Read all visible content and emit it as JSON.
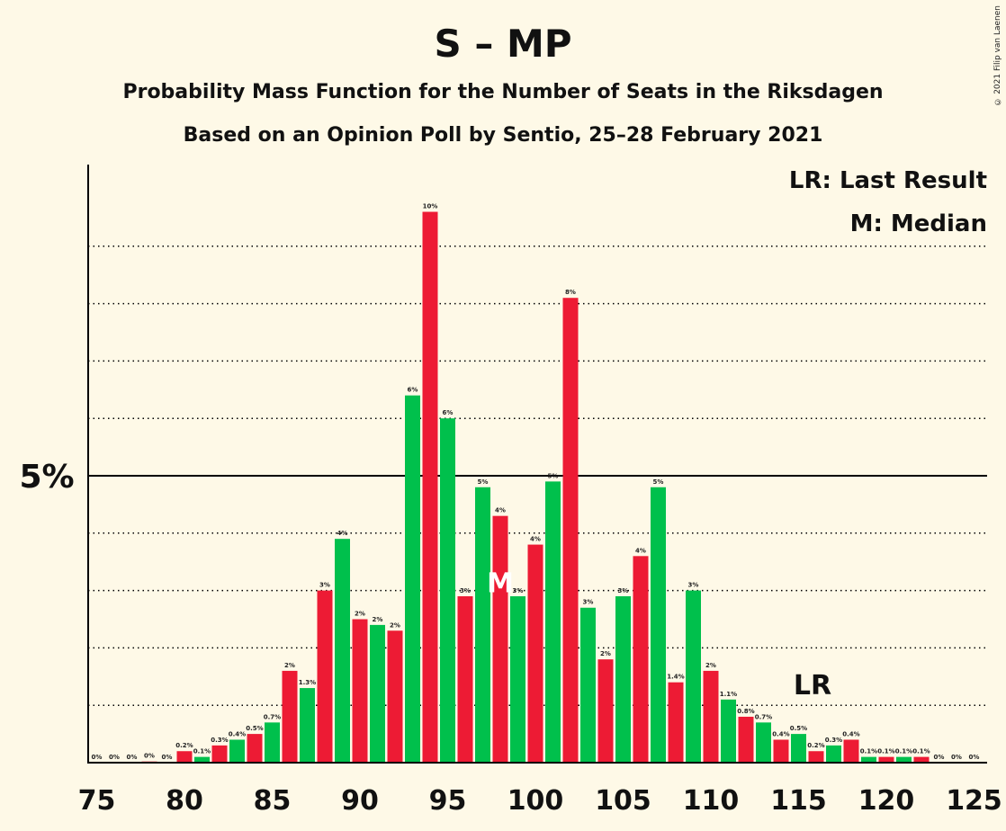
{
  "header": {
    "title": "S – MP",
    "subtitle": "Probability Mass Function for the Number of Seats in the Riksdagen",
    "subtitle2": "Based on an Opinion Poll by Sentio, 25–28 February 2021",
    "credit": "© 2021 Filip van Laenen"
  },
  "colors": {
    "red": "#ed1b34",
    "green": "#00c04c",
    "background": "#fef9e7"
  },
  "chart_data": {
    "type": "bar",
    "x": [
      75,
      76,
      77,
      78,
      79,
      80,
      81,
      82,
      83,
      84,
      85,
      86,
      87,
      88,
      89,
      90,
      91,
      92,
      93,
      94,
      95,
      96,
      97,
      98,
      99,
      100,
      101,
      102,
      103,
      104,
      105,
      106,
      107,
      108,
      109,
      110,
      111,
      112,
      113,
      114,
      115,
      116,
      117,
      118,
      119,
      120,
      121,
      122,
      123,
      124,
      125
    ],
    "values": [
      0,
      0,
      0,
      0.02,
      0,
      0.2,
      0.1,
      0.3,
      0.4,
      0.5,
      0.7,
      1.6,
      1.3,
      3.0,
      3.9,
      2.5,
      2.4,
      2.3,
      6.4,
      9.6,
      6.0,
      2.9,
      4.8,
      4.3,
      2.9,
      3.8,
      4.9,
      8.1,
      2.7,
      1.8,
      2.9,
      3.6,
      4.8,
      1.4,
      3.0,
      1.6,
      1.1,
      0.8,
      0.7,
      0.4,
      0.5,
      0.2,
      0.3,
      0.4,
      0.1,
      0.1,
      0.1,
      0.1,
      0,
      0,
      0
    ],
    "colors": [
      "green",
      "green",
      "green",
      "red",
      "green",
      "red",
      "green",
      "red",
      "green",
      "red",
      "green",
      "red",
      "green",
      "red",
      "green",
      "red",
      "green",
      "red",
      "green",
      "red",
      "green",
      "red",
      "green",
      "red",
      "green",
      "red",
      "green",
      "red",
      "green",
      "red",
      "green",
      "red",
      "green",
      "red",
      "green",
      "red",
      "green",
      "red",
      "green",
      "red",
      "green",
      "red",
      "green",
      "red",
      "green",
      "red",
      "green",
      "red",
      "green",
      "red",
      "green"
    ],
    "labels": [
      "0%",
      "0%",
      "0%",
      "0%",
      "0%",
      "0.2%",
      "0.1%",
      "0.3%",
      "0.4%",
      "0.5%",
      "0.7%",
      "2%",
      "1.3%",
      "3%",
      "4%",
      "2%",
      "2%",
      "2%",
      "6%",
      "10%",
      "6%",
      "3%",
      "5%",
      "4%",
      "3%",
      "4%",
      "5%",
      "8%",
      "3%",
      "2%",
      "3%",
      "4%",
      "5%",
      "1.4%",
      "3%",
      "2%",
      "1.1%",
      "0.8%",
      "0.7%",
      "0.4%",
      "0.5%",
      "0.2%",
      "0.3%",
      "0.4%",
      "0.1%",
      "0.1%",
      "0.1%",
      "0.1%",
      "0%",
      "0%",
      "0%"
    ],
    "xticks": [
      "75",
      "80",
      "85",
      "90",
      "95",
      "100",
      "105",
      "110",
      "115",
      "120",
      "125"
    ],
    "ytick_label": "5%",
    "ylim": [
      0,
      10.5
    ],
    "median_seat": 98,
    "median_marker": "M",
    "last_result_seat": 116,
    "last_result_marker": "LR",
    "legend": [
      "LR: Last Result",
      "M: Median"
    ],
    "legend_position": "top-right"
  }
}
